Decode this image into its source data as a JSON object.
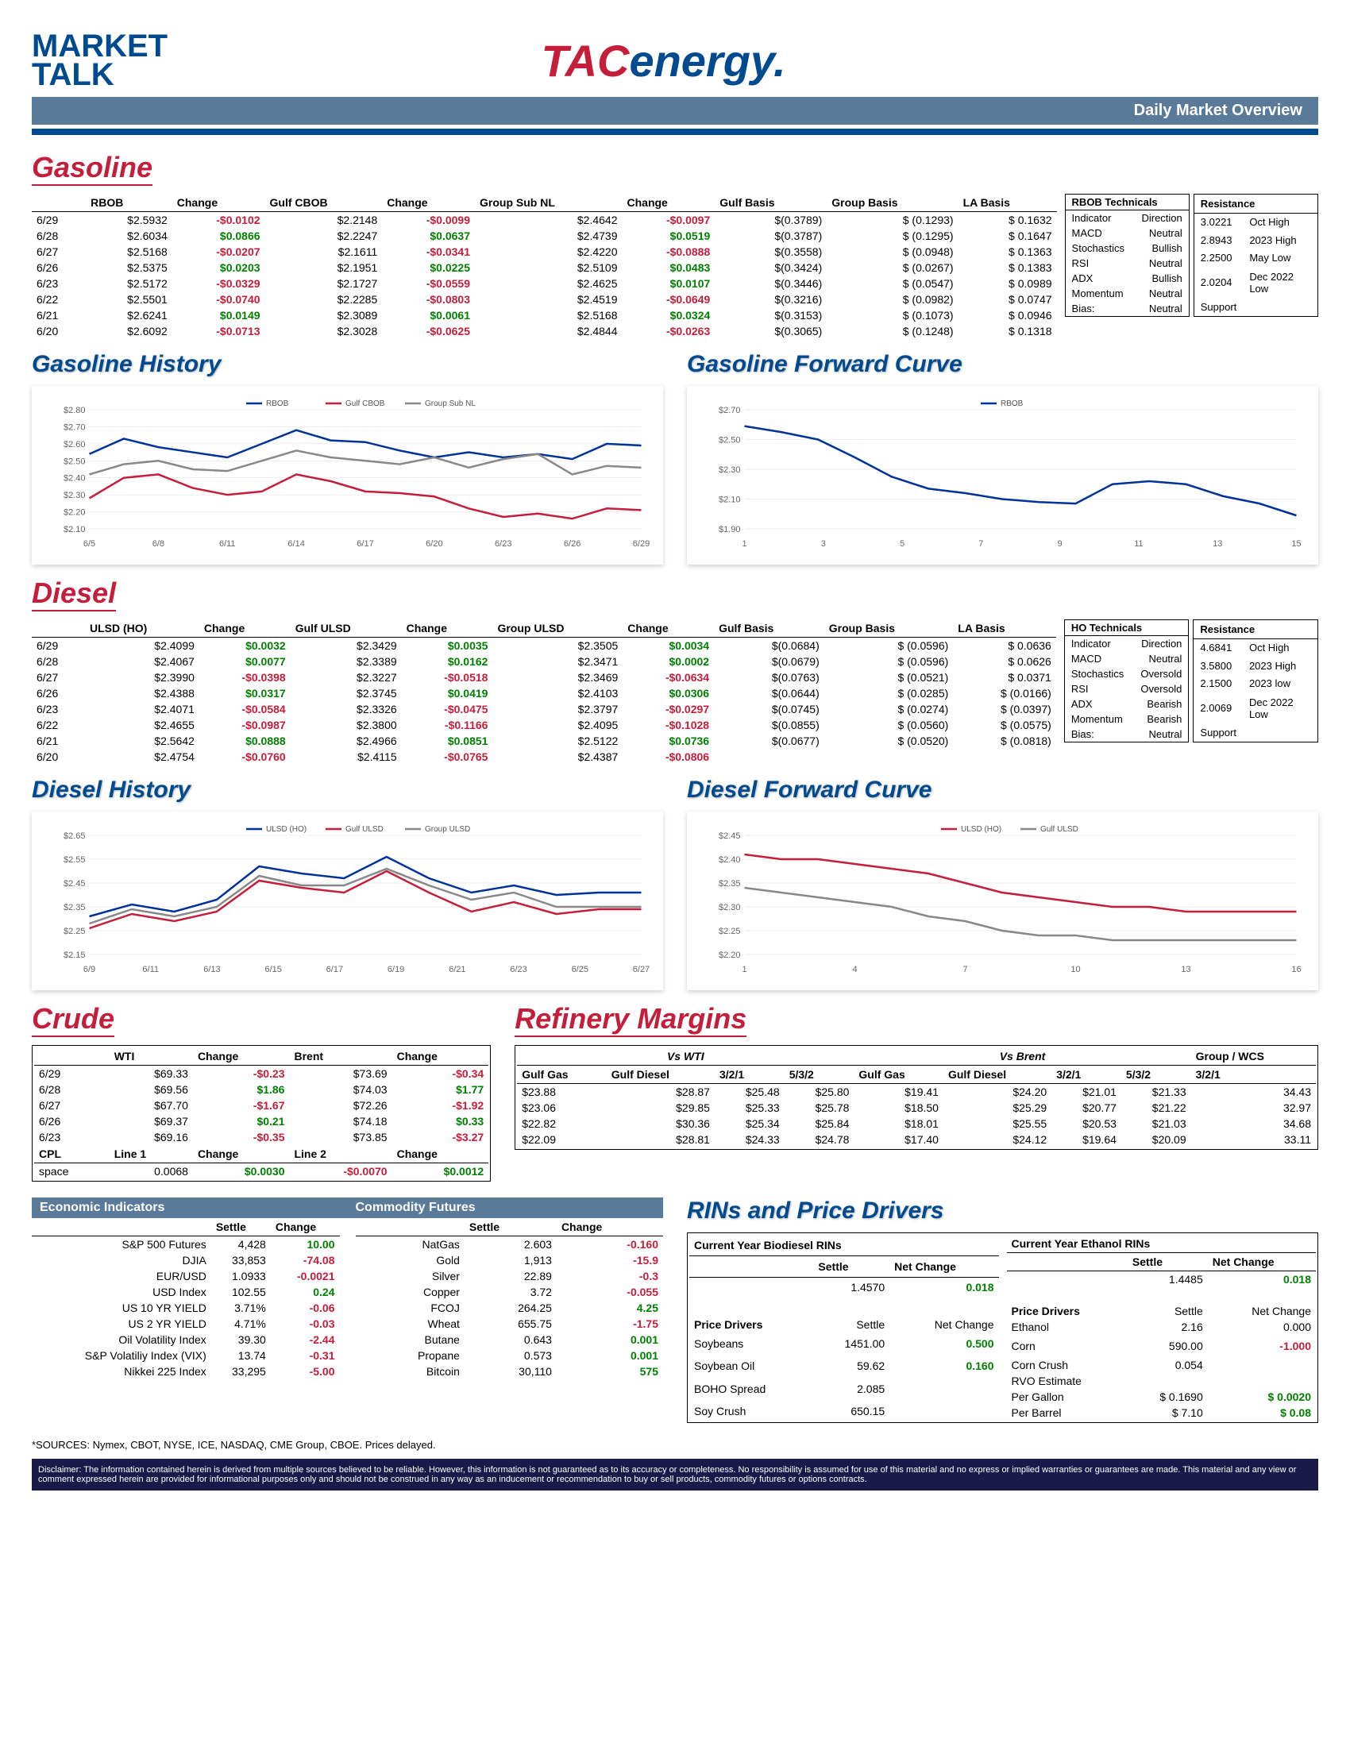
{
  "header": {
    "market": "MARKET",
    "talk": "TALK",
    "tac": "TAC",
    "energy": "energy",
    "banner": "Daily Market Overview"
  },
  "gasoline": {
    "title": "Gasoline",
    "columns": [
      "",
      "RBOB",
      "Change",
      "Gulf CBOB",
      "Change",
      "Group Sub NL",
      "Change",
      "Gulf Basis",
      "Group Basis",
      "LA Basis"
    ],
    "rows": [
      [
        "6/29",
        "$2.5932",
        "-$0.0102",
        "$2.2148",
        "-$0.0099",
        "$2.4642",
        "-$0.0097",
        "$(0.3789)",
        "$ (0.1293)",
        "$ 0.1632"
      ],
      [
        "6/28",
        "$2.6034",
        "$0.0866",
        "$2.2247",
        "$0.0637",
        "$2.4739",
        "$0.0519",
        "$(0.3787)",
        "$ (0.1295)",
        "$ 0.1647"
      ],
      [
        "6/27",
        "$2.5168",
        "-$0.0207",
        "$2.1611",
        "-$0.0341",
        "$2.4220",
        "-$0.0888",
        "$(0.3558)",
        "$ (0.0948)",
        "$ 0.1363"
      ],
      [
        "6/26",
        "$2.5375",
        "$0.0203",
        "$2.1951",
        "$0.0225",
        "$2.5109",
        "$0.0483",
        "$(0.3424)",
        "$ (0.0267)",
        "$ 0.1383"
      ],
      [
        "6/23",
        "$2.5172",
        "-$0.0329",
        "$2.1727",
        "-$0.0559",
        "$2.4625",
        "$0.0107",
        "$(0.3446)",
        "$ (0.0547)",
        "$ 0.0989"
      ],
      [
        "6/22",
        "$2.5501",
        "-$0.0740",
        "$2.2285",
        "-$0.0803",
        "$2.4519",
        "-$0.0649",
        "$(0.3216)",
        "$ (0.0982)",
        "$ 0.0747"
      ],
      [
        "6/21",
        "$2.6241",
        "$0.0149",
        "$2.3089",
        "$0.0061",
        "$2.5168",
        "$0.0324",
        "$(0.3153)",
        "$ (0.1073)",
        "$ 0.0946"
      ],
      [
        "6/20",
        "$2.6092",
        "-$0.0713",
        "$2.3028",
        "-$0.0625",
        "$2.4844",
        "-$0.0263",
        "$(0.3065)",
        "$ (0.1248)",
        "$ 0.1318"
      ]
    ],
    "signs": [
      [
        "-",
        "-",
        "-"
      ],
      [
        "+",
        "+",
        "+"
      ],
      [
        "-",
        "-",
        "-"
      ],
      [
        "+",
        "+",
        "+"
      ],
      [
        "-",
        "-",
        "+"
      ],
      [
        "-",
        "-",
        "-"
      ],
      [
        "+",
        "+",
        "+"
      ],
      [
        "-",
        "-",
        "-"
      ]
    ],
    "tech": {
      "title": "RBOB Technicals",
      "rows": [
        [
          "Indicator",
          "Direction"
        ],
        [
          "MACD",
          "Neutral"
        ],
        [
          "Stochastics",
          "Bullish"
        ],
        [
          "RSI",
          "Neutral"
        ],
        [
          "ADX",
          "Bullish"
        ],
        [
          "Momentum",
          "Neutral"
        ],
        [
          "Bias:",
          "Neutral"
        ]
      ]
    },
    "res": {
      "title": "Resistance",
      "rows": [
        [
          "3.0221",
          "Oct High"
        ],
        [
          "2.8943",
          "2023 High"
        ],
        [
          "2.2500",
          "May Low"
        ],
        [
          "2.0204",
          "Dec 2022 Low"
        ],
        [
          "Support",
          ""
        ]
      ]
    }
  },
  "gas_history": {
    "title": "Gasoline History",
    "xlabels": [
      "6/5",
      "6/8",
      "6/11",
      "6/14",
      "6/17",
      "6/20",
      "6/23",
      "6/26",
      "6/29"
    ],
    "ylabels": [
      "$2.10",
      "$2.20",
      "$2.30",
      "$2.40",
      "$2.50",
      "$2.60",
      "$2.70",
      "$2.80"
    ],
    "ylim": [
      2.1,
      2.8
    ],
    "series": [
      {
        "name": "RBOB",
        "color": "#003399",
        "data": [
          2.54,
          2.63,
          2.58,
          2.55,
          2.52,
          2.6,
          2.68,
          2.62,
          2.61,
          2.56,
          2.52,
          2.55,
          2.52,
          2.54,
          2.51,
          2.6,
          2.59
        ]
      },
      {
        "name": "Gulf CBOB",
        "color": "#c41e3a",
        "data": [
          2.28,
          2.4,
          2.42,
          2.34,
          2.3,
          2.32,
          2.42,
          2.38,
          2.32,
          2.31,
          2.29,
          2.22,
          2.17,
          2.19,
          2.16,
          2.22,
          2.21
        ]
      },
      {
        "name": "Group Sub NL",
        "color": "#888888",
        "data": [
          2.42,
          2.48,
          2.5,
          2.45,
          2.44,
          2.5,
          2.56,
          2.52,
          2.5,
          2.48,
          2.52,
          2.46,
          2.51,
          2.54,
          2.42,
          2.47,
          2.46
        ]
      }
    ]
  },
  "gas_fwd": {
    "title": "Gasoline Forward Curve",
    "xlabels": [
      "1",
      "3",
      "5",
      "7",
      "9",
      "11",
      "13",
      "15"
    ],
    "ylabels": [
      "$1.90",
      "$2.10",
      "$2.30",
      "$2.50",
      "$2.70"
    ],
    "ylim": [
      1.9,
      2.7
    ],
    "series": [
      {
        "name": "RBOB",
        "color": "#003399",
        "data": [
          2.59,
          2.55,
          2.5,
          2.38,
          2.25,
          2.17,
          2.14,
          2.1,
          2.08,
          2.07,
          2.2,
          2.22,
          2.2,
          2.12,
          2.07,
          1.99
        ]
      }
    ]
  },
  "diesel": {
    "title": "Diesel",
    "columns": [
      "",
      "ULSD (HO)",
      "Change",
      "Gulf ULSD",
      "Change",
      "Group ULSD",
      "Change",
      "Gulf Basis",
      "Group Basis",
      "LA Basis"
    ],
    "rows": [
      [
        "6/29",
        "$2.4099",
        "$0.0032",
        "$2.3429",
        "$0.0035",
        "$2.3505",
        "$0.0034",
        "$(0.0684)",
        "$ (0.0596)",
        "$ 0.0636"
      ],
      [
        "6/28",
        "$2.4067",
        "$0.0077",
        "$2.3389",
        "$0.0162",
        "$2.3471",
        "$0.0002",
        "$(0.0679)",
        "$ (0.0596)",
        "$ 0.0626"
      ],
      [
        "6/27",
        "$2.3990",
        "-$0.0398",
        "$2.3227",
        "-$0.0518",
        "$2.3469",
        "-$0.0634",
        "$(0.0763)",
        "$ (0.0521)",
        "$ 0.0371"
      ],
      [
        "6/26",
        "$2.4388",
        "$0.0317",
        "$2.3745",
        "$0.0419",
        "$2.4103",
        "$0.0306",
        "$(0.0644)",
        "$ (0.0285)",
        "$ (0.0166)"
      ],
      [
        "6/23",
        "$2.4071",
        "-$0.0584",
        "$2.3326",
        "-$0.0475",
        "$2.3797",
        "-$0.0297",
        "$(0.0745)",
        "$ (0.0274)",
        "$ (0.0397)"
      ],
      [
        "6/22",
        "$2.4655",
        "-$0.0987",
        "$2.3800",
        "-$0.1166",
        "$2.4095",
        "-$0.1028",
        "$(0.0855)",
        "$ (0.0560)",
        "$ (0.0575)"
      ],
      [
        "6/21",
        "$2.5642",
        "$0.0888",
        "$2.4966",
        "$0.0851",
        "$2.5122",
        "$0.0736",
        "$(0.0677)",
        "$ (0.0520)",
        "$ (0.0818)"
      ],
      [
        "6/20",
        "$2.4754",
        "-$0.0760",
        "$2.4115",
        "-$0.0765",
        "$2.4387",
        "-$0.0806",
        "",
        "",
        ""
      ]
    ],
    "signs": [
      [
        "+",
        "+",
        "+"
      ],
      [
        "+",
        "+",
        "+"
      ],
      [
        "-",
        "-",
        "-"
      ],
      [
        "+",
        "+",
        "+"
      ],
      [
        "-",
        "-",
        "-"
      ],
      [
        "-",
        "-",
        "-"
      ],
      [
        "+",
        "+",
        "+"
      ],
      [
        "-",
        "-",
        "-"
      ]
    ],
    "tech": {
      "title": "HO Technicals",
      "rows": [
        [
          "Indicator",
          "Direction"
        ],
        [
          "MACD",
          "Neutral"
        ],
        [
          "Stochastics",
          "Oversold"
        ],
        [
          "RSI",
          "Oversold"
        ],
        [
          "ADX",
          "Bearish"
        ],
        [
          "Momentum",
          "Bearish"
        ],
        [
          "Bias:",
          "Neutral"
        ]
      ]
    },
    "res": {
      "title": "Resistance",
      "rows": [
        [
          "4.6841",
          "Oct High"
        ],
        [
          "3.5800",
          "2023 High"
        ],
        [
          "2.1500",
          "2023 low"
        ],
        [
          "2.0069",
          "Dec 2022 Low"
        ],
        [
          "Support",
          ""
        ]
      ]
    }
  },
  "diesel_history": {
    "title": "Diesel History",
    "xlabels": [
      "6/9",
      "6/11",
      "6/13",
      "6/15",
      "6/17",
      "6/19",
      "6/21",
      "6/23",
      "6/25",
      "6/27"
    ],
    "ylabels": [
      "$2.15",
      "$2.25",
      "$2.35",
      "$2.45",
      "$2.55",
      "$2.65"
    ],
    "ylim": [
      2.15,
      2.65
    ],
    "series": [
      {
        "name": "ULSD (HO)",
        "color": "#003399",
        "data": [
          2.31,
          2.36,
          2.33,
          2.38,
          2.52,
          2.49,
          2.47,
          2.56,
          2.47,
          2.41,
          2.44,
          2.4,
          2.41,
          2.41
        ]
      },
      {
        "name": "Gulf ULSD",
        "color": "#c41e3a",
        "data": [
          2.26,
          2.32,
          2.29,
          2.33,
          2.46,
          2.43,
          2.41,
          2.5,
          2.41,
          2.33,
          2.37,
          2.32,
          2.34,
          2.34
        ]
      },
      {
        "name": "Group ULSD",
        "color": "#888888",
        "data": [
          2.28,
          2.34,
          2.31,
          2.35,
          2.48,
          2.44,
          2.44,
          2.51,
          2.44,
          2.38,
          2.41,
          2.35,
          2.35,
          2.35
        ]
      }
    ]
  },
  "diesel_fwd": {
    "title": "Diesel Forward Curve",
    "xlabels": [
      "1",
      "4",
      "7",
      "10",
      "13",
      "16"
    ],
    "ylabels": [
      "$2.20",
      "$2.25",
      "$2.30",
      "$2.35",
      "$2.40",
      "$2.45"
    ],
    "ylim": [
      2.2,
      2.45
    ],
    "series": [
      {
        "name": "ULSD (HO)",
        "color": "#c41e3a",
        "data": [
          2.41,
          2.4,
          2.4,
          2.39,
          2.38,
          2.37,
          2.35,
          2.33,
          2.32,
          2.31,
          2.3,
          2.3,
          2.29,
          2.29,
          2.29,
          2.29
        ]
      },
      {
        "name": "Gulf ULSD",
        "color": "#888888",
        "data": [
          2.34,
          2.33,
          2.32,
          2.31,
          2.3,
          2.28,
          2.27,
          2.25,
          2.24,
          2.24,
          2.23,
          2.23,
          2.23,
          2.23,
          2.23,
          2.23
        ]
      }
    ]
  },
  "crude": {
    "title": "Crude",
    "cols": [
      "",
      "WTI",
      "Change",
      "Brent",
      "Change"
    ],
    "rows": [
      [
        "6/29",
        "$69.33",
        "-$0.23",
        "$73.69",
        "-$0.34"
      ],
      [
        "6/28",
        "$69.56",
        "$1.86",
        "$74.03",
        "$1.77"
      ],
      [
        "6/27",
        "$67.70",
        "-$1.67",
        "$72.26",
        "-$1.92"
      ],
      [
        "6/26",
        "$69.37",
        "$0.21",
        "$74.18",
        "$0.33"
      ],
      [
        "6/23",
        "$69.16",
        "-$0.35",
        "$73.85",
        "-$3.27"
      ]
    ],
    "signs": [
      [
        "-",
        "-"
      ],
      [
        "+",
        "+"
      ],
      [
        "-",
        "-"
      ],
      [
        "+",
        "+"
      ],
      [
        "-",
        "-"
      ]
    ],
    "cpl": [
      "CPL",
      "Line 1",
      "Change",
      "Line 2",
      "Change"
    ],
    "cpl_row": [
      "space",
      "0.0068",
      "$0.0030",
      "-$0.0070",
      "$0.0012"
    ],
    "cpl_signs": [
      "",
      "",
      "+",
      "-",
      "+"
    ]
  },
  "margins": {
    "title": "Refinery Margins",
    "wti_header": "Vs WTI",
    "brent_header": "Vs Brent",
    "grp": "Group / WCS",
    "cols": [
      "Gulf Gas",
      "Gulf Diesel",
      "3/2/1",
      "5/3/2",
      "Gulf Gas",
      "Gulf Diesel",
      "3/2/1",
      "5/3/2",
      "3/2/1"
    ],
    "rows": [
      [
        "$23.88",
        "$28.87",
        "$25.48",
        "$25.80",
        "$19.41",
        "$24.20",
        "$21.01",
        "$21.33",
        "34.43"
      ],
      [
        "$23.06",
        "$29.85",
        "$25.33",
        "$25.78",
        "$18.50",
        "$25.29",
        "$20.77",
        "$21.22",
        "32.97"
      ],
      [
        "$22.82",
        "$30.36",
        "$25.34",
        "$25.84",
        "$18.01",
        "$25.55",
        "$20.53",
        "$21.03",
        "34.68"
      ],
      [
        "$22.09",
        "$28.81",
        "$24.33",
        "$24.78",
        "$17.40",
        "$24.12",
        "$19.64",
        "$20.09",
        "33.11"
      ]
    ]
  },
  "econ": {
    "title1": "Economic Indicators",
    "title2": "Commodity Futures",
    "left": [
      [
        "S&P 500 Futures",
        "4,428",
        "10.00",
        "+"
      ],
      [
        "DJIA",
        "33,853",
        "-74.08",
        "-"
      ],
      [
        "EUR/USD",
        "1.0933",
        "-0.0021",
        "-"
      ],
      [
        "USD Index",
        "102.55",
        "0.24",
        "+"
      ],
      [
        "US 10 YR YIELD",
        "3.71%",
        "-0.06",
        "-"
      ],
      [
        "US 2 YR YIELD",
        "4.71%",
        "-0.03",
        "-"
      ],
      [
        "Oil Volatility Index",
        "39.30",
        "-2.44",
        "-"
      ],
      [
        "S&P Volatiliy Index (VIX)",
        "13.74",
        "-0.31",
        "-"
      ],
      [
        "Nikkei 225 Index",
        "33,295",
        "-5.00",
        "-"
      ]
    ],
    "right": [
      [
        "NatGas",
        "2.603",
        "-0.160",
        "-"
      ],
      [
        "Gold",
        "1,913",
        "-15.9",
        "-"
      ],
      [
        "Silver",
        "22.89",
        "-0.3",
        "-"
      ],
      [
        "Copper",
        "3.72",
        "-0.055",
        "-"
      ],
      [
        "FCOJ",
        "264.25",
        "4.25",
        "+"
      ],
      [
        "Wheat",
        "655.75",
        "-1.75",
        "-"
      ],
      [
        "Butane",
        "0.643",
        "0.001",
        "+"
      ],
      [
        "Propane",
        "0.573",
        "0.001",
        "+"
      ],
      [
        "Bitcoin",
        "30,110",
        "575",
        "+"
      ]
    ]
  },
  "rins": {
    "title": "RINs and Price Drivers",
    "bio": "Current Year Biodiesel RINs",
    "eth": "Current Year Ethanol RINs",
    "bio_row": [
      "",
      "1.4570",
      "0.018",
      "+"
    ],
    "eth_row": [
      "",
      "1.4485",
      "0.018",
      "+"
    ],
    "drivers_l": [
      [
        "Price Drivers",
        "Settle",
        "Net Change",
        ""
      ],
      [
        "Soybeans",
        "1451.00",
        "0.500",
        "+"
      ],
      [
        "",
        "",
        "",
        ""
      ],
      [
        "Soybean Oil",
        "59.62",
        "0.160",
        "+"
      ],
      [
        "",
        "",
        "",
        ""
      ],
      [
        "BOHO Spread",
        "2.085",
        "",
        ""
      ],
      [
        "",
        "",
        "",
        ""
      ],
      [
        "Soy Crush",
        "650.15",
        "",
        ""
      ]
    ],
    "drivers_r": [
      [
        "Price Drivers",
        "Settle",
        "Net Change",
        ""
      ],
      [
        "Ethanol",
        "2.16",
        "0.000",
        ""
      ],
      [
        "",
        "",
        "",
        ""
      ],
      [
        "Corn",
        "590.00",
        "-1.000",
        "-"
      ],
      [
        "",
        "",
        "",
        ""
      ],
      [
        "Corn Crush",
        "0.054",
        "",
        ""
      ],
      [
        "RVO Estimate",
        "",
        "",
        ""
      ],
      [
        "Per Gallon",
        "$ 0.1690",
        "$ 0.0020",
        "+"
      ],
      [
        "Per Barrel",
        "$ 7.10",
        "$ 0.08",
        "+"
      ]
    ]
  },
  "sources": "*SOURCES: Nymex, CBOT, NYSE, ICE, NASDAQ, CME Group, CBOE.   Prices delayed.",
  "disclaimer": "Disclaimer: The information contained herein is derived from multiple sources believed to be reliable. However, this information is not guaranteed as to its accuracy or completeness. No responsibility is assumed for use of this material and no express or implied warranties or guarantees are made. This material and any view or comment expressed herein are provided for informational purposes only and should not be construed in any way as an inducement or recommendation to buy or sell products, commodity futures or options contracts."
}
